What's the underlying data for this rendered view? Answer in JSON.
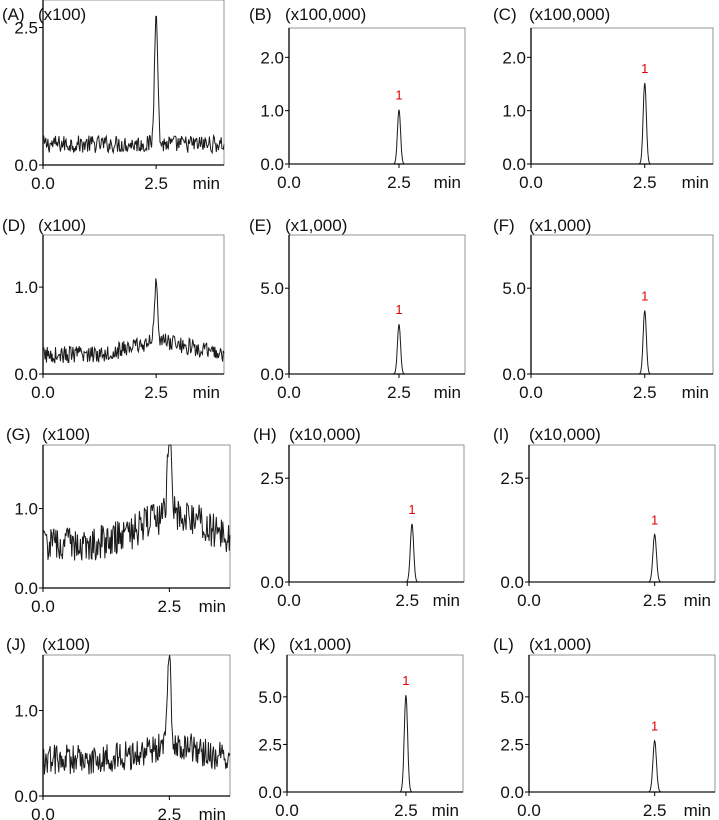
{
  "chart_data": [
    {
      "panel": "(A)",
      "type": "line",
      "multiplier": "(x100)",
      "xlabel": "min",
      "x_ticks": [
        "0.0",
        "2.5"
      ],
      "y_ticks": [
        "0.0",
        "2.5"
      ],
      "xlim": [
        0,
        4
      ],
      "ylim": [
        0,
        3.0
      ],
      "baseline": 0.38,
      "noise": 0.16,
      "peak": {
        "x": 2.5,
        "y": 2.9,
        "label": ""
      }
    },
    {
      "panel": "(B)",
      "type": "line",
      "multiplier": "(x100,000)",
      "xlabel": "min",
      "x_ticks": [
        "0.0",
        "2.5"
      ],
      "y_ticks": [
        "0.0",
        "1.0",
        "2.0"
      ],
      "xlim": [
        0,
        4
      ],
      "ylim": [
        0,
        2.55
      ],
      "baseline": 0.0,
      "noise": 0.0,
      "peak": {
        "x": 2.5,
        "y": 1.02,
        "label": "1"
      }
    },
    {
      "panel": "(C)",
      "type": "line",
      "multiplier": "(x100,000)",
      "xlabel": "min",
      "x_ticks": [
        "0.0",
        "2.5"
      ],
      "y_ticks": [
        "0.0",
        "1.0",
        "2.0"
      ],
      "xlim": [
        0,
        4
      ],
      "ylim": [
        0,
        2.55
      ],
      "baseline": 0.0,
      "noise": 0.0,
      "peak": {
        "x": 2.5,
        "y": 1.52,
        "label": "1"
      }
    },
    {
      "panel": "(D)",
      "type": "line",
      "multiplier": "(x100)",
      "xlabel": "min",
      "x_ticks": [
        "0.0",
        "2.5"
      ],
      "y_ticks": [
        "0.0",
        "1.0"
      ],
      "xlim": [
        0,
        4
      ],
      "ylim": [
        0,
        1.6
      ],
      "baseline": 0.22,
      "noise": 0.1,
      "trend": 0.1,
      "peak": {
        "x": 2.5,
        "y": 0.98,
        "label": ""
      }
    },
    {
      "panel": "(E)",
      "type": "line",
      "multiplier": "(x1,000)",
      "xlabel": "min",
      "x_ticks": [
        "0.0",
        "2.5"
      ],
      "y_ticks": [
        "0.0",
        "5.0"
      ],
      "xlim": [
        0,
        4
      ],
      "ylim": [
        0,
        8.1
      ],
      "baseline": 0.0,
      "noise": 0.0,
      "peak": {
        "x": 2.5,
        "y": 2.9,
        "label": "1"
      }
    },
    {
      "panel": "(F)",
      "type": "line",
      "multiplier": "(x1,000)",
      "xlabel": "min",
      "x_ticks": [
        "0.0",
        "2.5"
      ],
      "y_ticks": [
        "0.0",
        "5.0"
      ],
      "xlim": [
        0,
        4
      ],
      "ylim": [
        0,
        8.1
      ],
      "baseline": 0.0,
      "noise": 0.0,
      "peak": {
        "x": 2.5,
        "y": 3.7,
        "label": "1"
      }
    },
    {
      "panel": "(G)",
      "type": "line",
      "multiplier": "(x100)",
      "xlabel": "min",
      "x_ticks": [
        "0.0",
        "2.5"
      ],
      "y_ticks": [
        "0.0",
        "1.0"
      ],
      "xlim": [
        0,
        3.7
      ],
      "ylim": [
        0,
        1.8
      ],
      "baseline": 0.55,
      "noise": 0.22,
      "trend": 0.25,
      "peak": {
        "x": 2.5,
        "y": 1.7,
        "label": ""
      }
    },
    {
      "panel": "(H)",
      "type": "line",
      "multiplier": "(x10,000)",
      "xlabel": "min",
      "x_ticks": [
        "0.0",
        "2.5"
      ],
      "y_ticks": [
        "0.0",
        "2.5"
      ],
      "xlim": [
        0,
        3.7
      ],
      "ylim": [
        0,
        3.3
      ],
      "baseline": 0.0,
      "noise": 0.0,
      "peak": {
        "x": 2.6,
        "y": 1.4,
        "label": "1"
      }
    },
    {
      "panel": "(I)",
      "type": "line",
      "multiplier": "(x10,000)",
      "xlabel": "min",
      "x_ticks": [
        "0.0",
        "2.5"
      ],
      "y_ticks": [
        "0.0",
        "2.5"
      ],
      "xlim": [
        0,
        3.7
      ],
      "ylim": [
        0,
        3.3
      ],
      "baseline": 0.0,
      "noise": 0.0,
      "peak": {
        "x": 2.5,
        "y": 1.15,
        "label": "1"
      }
    },
    {
      "panel": "(J)",
      "type": "line",
      "multiplier": "(x100)",
      "xlabel": "min",
      "x_ticks": [
        "0.0",
        "2.5"
      ],
      "y_ticks": [
        "0.0",
        "1.0"
      ],
      "xlim": [
        0,
        3.7
      ],
      "ylim": [
        0,
        1.65
      ],
      "baseline": 0.42,
      "noise": 0.18,
      "trend": 0.1,
      "peak": {
        "x": 2.5,
        "y": 1.5,
        "label": ""
      }
    },
    {
      "panel": "(K)",
      "type": "line",
      "multiplier": "(x1,000)",
      "xlabel": "min",
      "x_ticks": [
        "0.0",
        "2.5"
      ],
      "y_ticks": [
        "0.0",
        "2.5",
        "5.0"
      ],
      "xlim": [
        0,
        3.7
      ],
      "ylim": [
        0,
        7.2
      ],
      "baseline": 0.0,
      "noise": 0.0,
      "peak": {
        "x": 2.5,
        "y": 5.1,
        "label": "1"
      }
    },
    {
      "panel": "(L)",
      "type": "line",
      "multiplier": "(x1,000)",
      "xlabel": "min",
      "x_ticks": [
        "0.0",
        "2.5"
      ],
      "y_ticks": [
        "0.0",
        "2.5",
        "5.0"
      ],
      "xlim": [
        0,
        3.7
      ],
      "ylim": [
        0,
        7.2
      ],
      "baseline": 0.0,
      "noise": 0.0,
      "peak": {
        "x": 2.5,
        "y": 2.7,
        "label": "1"
      }
    }
  ],
  "colors": {
    "trace": "#1a1a1a",
    "frame": "#000000",
    "peak_label": "#e00000",
    "text": "#111111"
  }
}
